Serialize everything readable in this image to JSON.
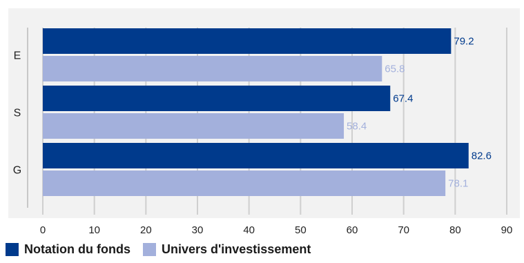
{
  "chart_data": {
    "type": "bar",
    "orientation": "horizontal",
    "categories": [
      "E",
      "S",
      "G"
    ],
    "series": [
      {
        "name": "Notation du fonds",
        "values": [
          79.2,
          67.4,
          82.6
        ],
        "color": "#003a8c"
      },
      {
        "name": "Univers d'investissement",
        "values": [
          65.8,
          58.4,
          78.1
        ],
        "color": "#a3b0dc"
      }
    ],
    "xlim": [
      0,
      90
    ],
    "x_ticks": [
      "0",
      "10",
      "20",
      "30",
      "40",
      "50",
      "60",
      "70",
      "80",
      "90"
    ],
    "grid": true,
    "legend_position": "bottom-left",
    "background_color": "#f2f2f2",
    "data_labels": true
  }
}
